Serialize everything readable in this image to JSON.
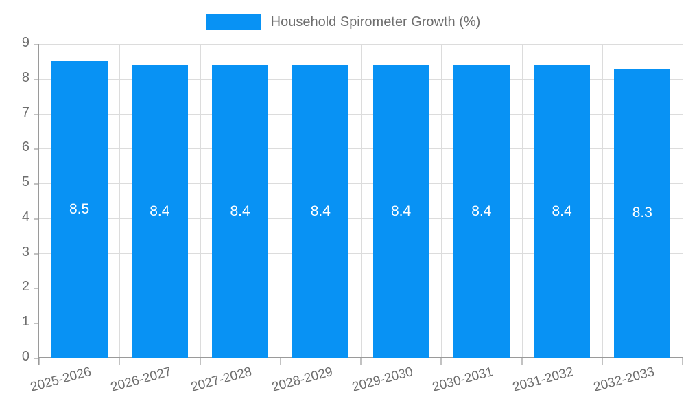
{
  "legend": {
    "label": "Household Spirometer Growth (%)"
  },
  "chart_data": {
    "type": "bar",
    "title": "Household Spirometer Growth (%)",
    "categories": [
      "2025-2026",
      "2026-2027",
      "2027-2028",
      "2028-2029",
      "2029-2030",
      "2030-2031",
      "2031-2032",
      "2032-2033"
    ],
    "values": [
      8.5,
      8.4,
      8.4,
      8.4,
      8.4,
      8.4,
      8.4,
      8.3
    ],
    "value_labels": [
      "8.5",
      "8.4",
      "8.4",
      "8.4",
      "8.4",
      "8.4",
      "8.4",
      "8.3"
    ],
    "xlabel": "",
    "ylabel": "",
    "ylim": [
      0,
      9
    ],
    "ytick_step": 1,
    "yticks": [
      "0",
      "1",
      "2",
      "3",
      "4",
      "5",
      "6",
      "7",
      "8",
      "9"
    ],
    "grid": true,
    "legend_position": "top",
    "colors": {
      "bar": "#0892f4",
      "bar_value_text": "#ffffff",
      "axis_text": "#6e6e6e",
      "grid_line": "#dcdcdc",
      "axis_line": "#9a9a9a",
      "tick_mark": "#c2c2c2",
      "background": "#ffffff"
    }
  }
}
